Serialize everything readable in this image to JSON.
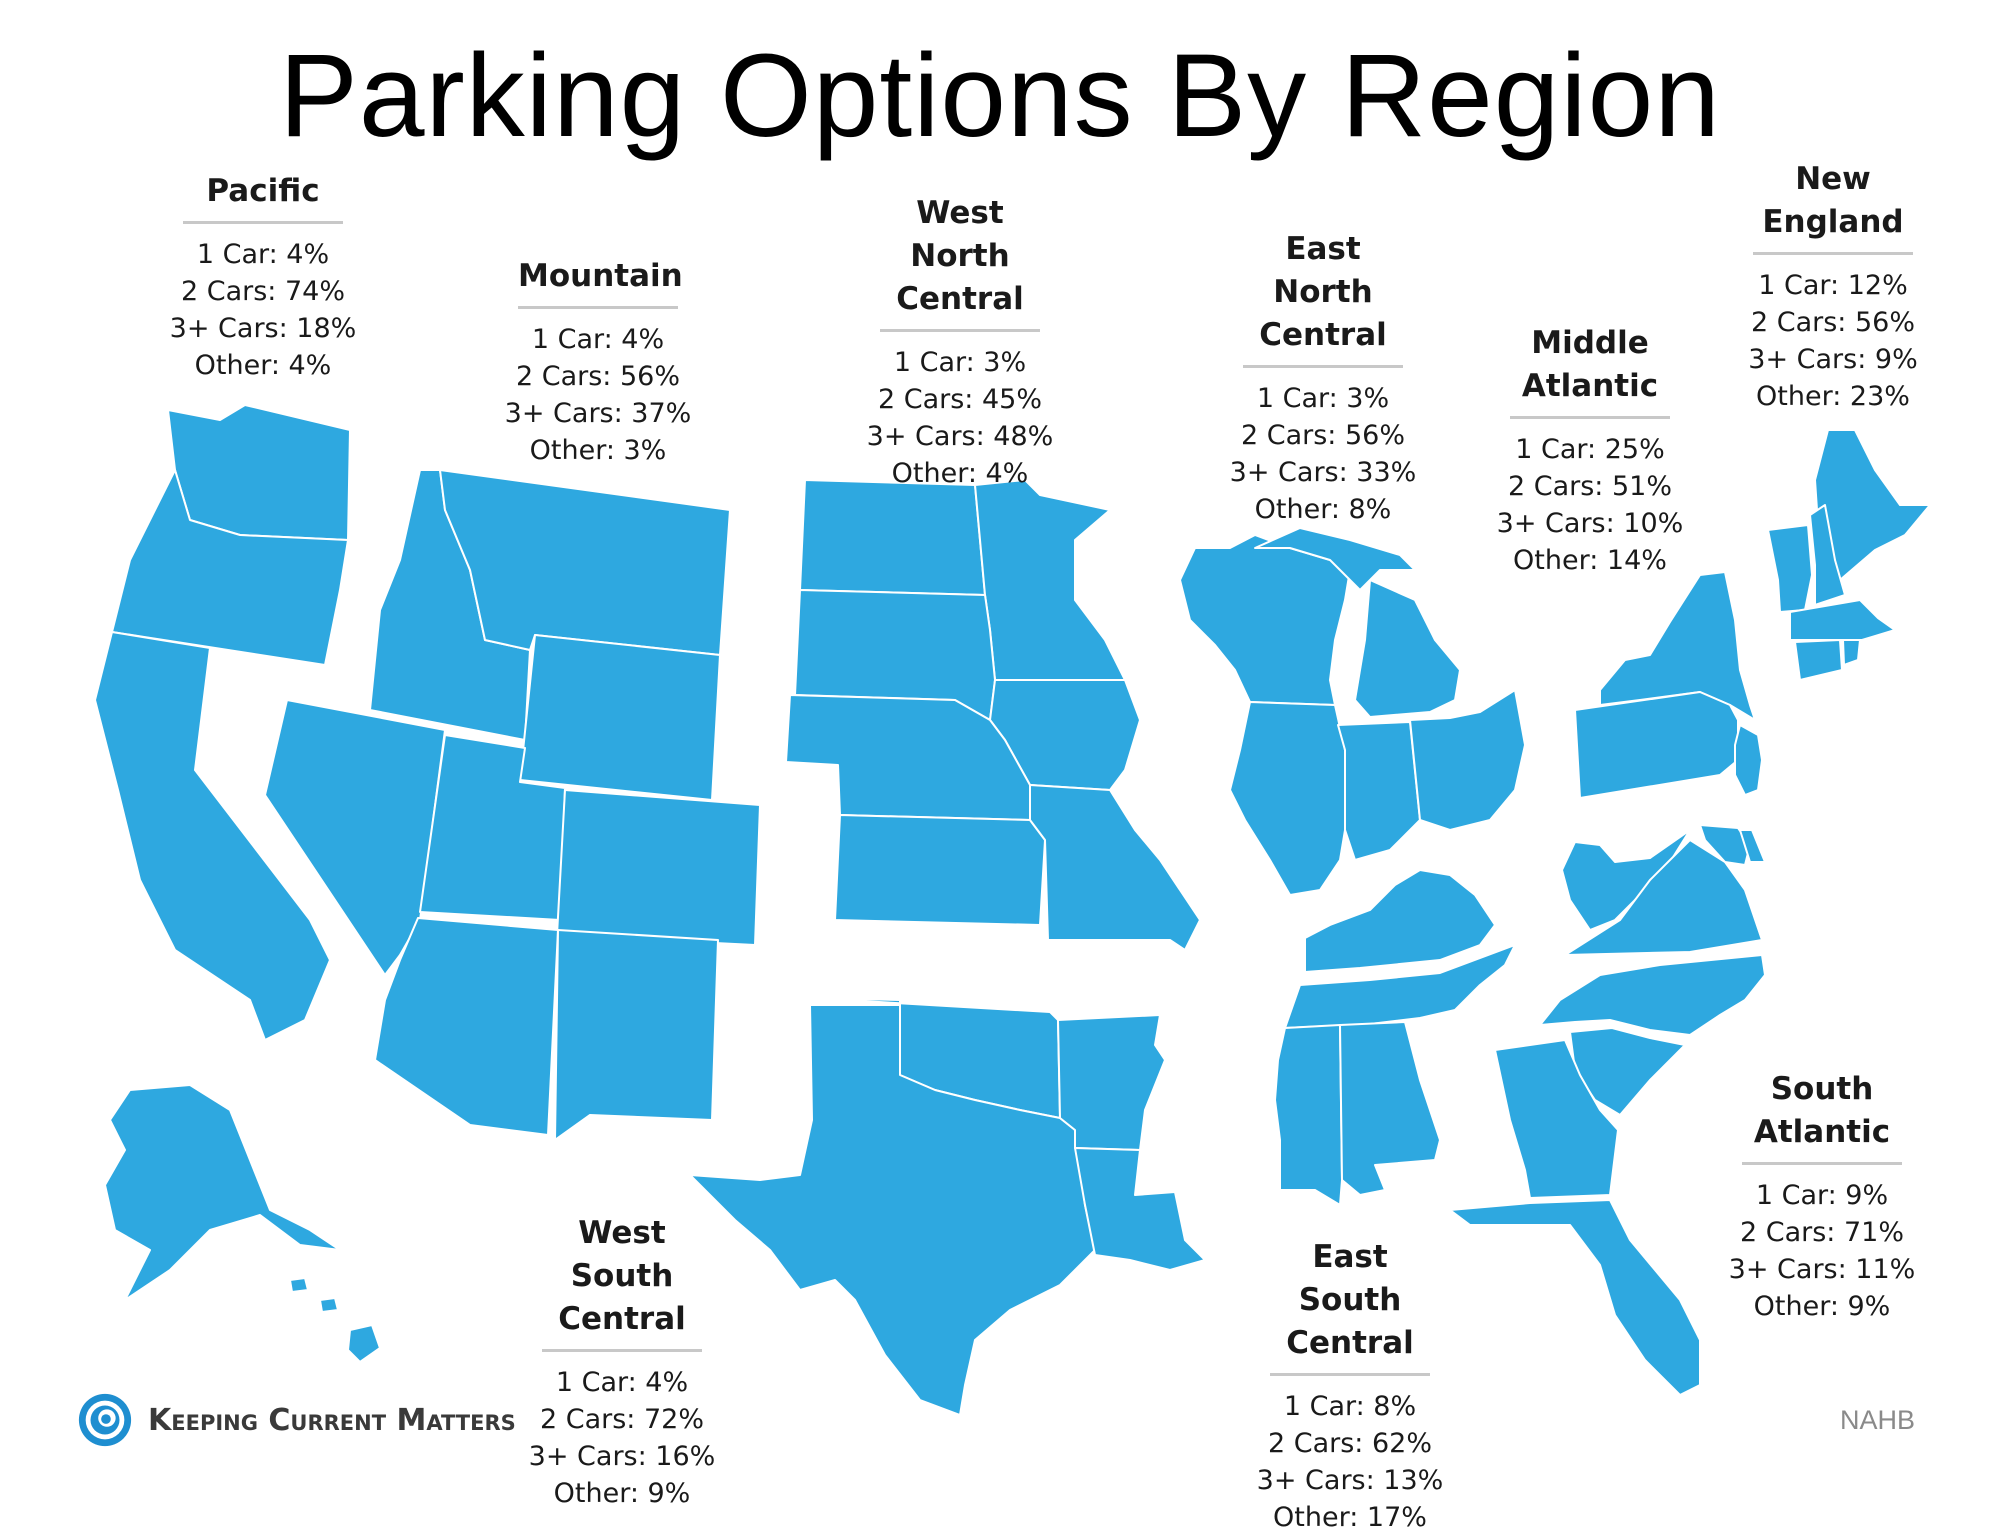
{
  "title": "Parking Options By Region",
  "map_color": "#2ea8e0",
  "regions": [
    {
      "name": "Pacific",
      "stats": [
        "1 Car: 4%",
        "2 Cars: 74%",
        "3+ Cars: 18%",
        "Other: 4%"
      ]
    },
    {
      "name": "Mountain",
      "stats": [
        "1 Car: 4%",
        "2 Cars: 56%",
        "3+ Cars: 37%",
        "Other: 3%"
      ]
    },
    {
      "name": "West North Central",
      "stats": [
        "1 Car: 3%",
        "2 Cars: 45%",
        "3+ Cars: 48%",
        "Other: 4%"
      ]
    },
    {
      "name": "East North Central",
      "stats": [
        "1 Car: 3%",
        "2 Cars: 56%",
        "3+ Cars: 33%",
        "Other: 8%"
      ]
    },
    {
      "name": "Middle Atlantic",
      "stats": [
        "1 Car: 25%",
        "2 Cars: 51%",
        "3+ Cars: 10%",
        "Other: 14%"
      ]
    },
    {
      "name": "New England",
      "stats": [
        "1 Car: 12%",
        "2 Cars: 56%",
        "3+ Cars: 9%",
        "Other: 23%"
      ]
    },
    {
      "name": "West South Central",
      "stats": [
        "1 Car: 4%",
        "2 Cars: 72%",
        "3+ Cars: 16%",
        "Other: 9%"
      ]
    },
    {
      "name": "East South Central",
      "stats": [
        "1 Car: 8%",
        "2 Cars: 62%",
        "3+ Cars: 13%",
        "Other: 17%"
      ]
    },
    {
      "name": "South Atlantic",
      "stats": [
        "1 Car: 9%",
        "2 Cars: 71%",
        "3+ Cars: 11%",
        "Other: 9%"
      ]
    }
  ],
  "logo": {
    "text": "Keeping Current Matters",
    "icon": "swirl-logo-icon"
  },
  "source": "NAHB"
}
